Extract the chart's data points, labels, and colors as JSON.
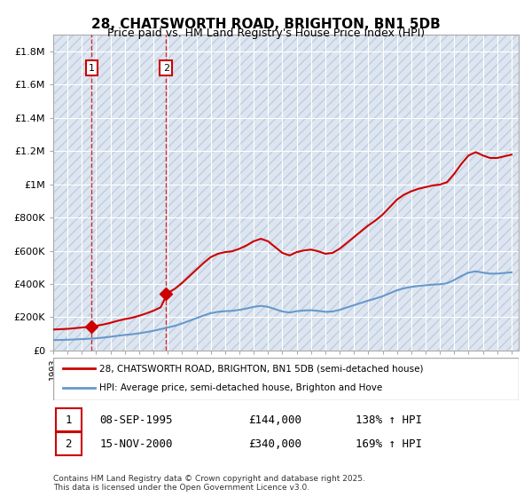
{
  "title": "28, CHATSWORTH ROAD, BRIGHTON, BN1 5DB",
  "subtitle": "Price paid vs. HM Land Registry's House Price Index (HPI)",
  "ylim": [
    0,
    1900000
  ],
  "yticks": [
    0,
    200000,
    400000,
    600000,
    800000,
    1000000,
    1200000,
    1400000,
    1600000,
    1800000
  ],
  "ytick_labels": [
    "£0",
    "£200K",
    "£400K",
    "£600K",
    "£800K",
    "£1M",
    "£1.2M",
    "£1.4M",
    "£1.6M",
    "£1.8M"
  ],
  "hpi_years": [
    1993,
    1993.5,
    1994,
    1994.5,
    1995,
    1995.5,
    1996,
    1996.5,
    1997,
    1997.5,
    1998,
    1998.5,
    1999,
    1999.5,
    2000,
    2000.5,
    2001,
    2001.5,
    2002,
    2002.5,
    2003,
    2003.5,
    2004,
    2004.5,
    2005,
    2005.5,
    2006,
    2006.5,
    2007,
    2007.5,
    2008,
    2008.5,
    2009,
    2009.5,
    2010,
    2010.5,
    2011,
    2011.5,
    2012,
    2012.5,
    2013,
    2013.5,
    2014,
    2014.5,
    2015,
    2015.5,
    2016,
    2016.5,
    2017,
    2017.5,
    2018,
    2018.5,
    2019,
    2019.5,
    2020,
    2020.5,
    2021,
    2021.5,
    2022,
    2022.5,
    2023,
    2023.5,
    2024,
    2024.5,
    2025
  ],
  "hpi_values": [
    62000,
    63000,
    64000,
    66000,
    68000,
    70000,
    73000,
    77000,
    82000,
    88000,
    93000,
    97000,
    103000,
    110000,
    118000,
    128000,
    138000,
    148000,
    162000,
    178000,
    194000,
    210000,
    224000,
    232000,
    236000,
    238000,
    244000,
    252000,
    262000,
    268000,
    262000,
    248000,
    234000,
    228000,
    236000,
    240000,
    242000,
    238000,
    232000,
    234000,
    244000,
    258000,
    272000,
    286000,
    300000,
    312000,
    326000,
    344000,
    362000,
    374000,
    382000,
    388000,
    392000,
    396000,
    398000,
    404000,
    424000,
    448000,
    468000,
    476000,
    468000,
    462000,
    462000,
    466000,
    470000
  ],
  "price_years": [
    1995.69,
    2000.88
  ],
  "price_values": [
    144000,
    340000
  ],
  "sale_labels": [
    "1",
    "2"
  ],
  "sale_dates": [
    "08-SEP-1995",
    "15-NOV-2000"
  ],
  "sale_prices": [
    "£144,000",
    "£340,000"
  ],
  "sale_hpi_pct": [
    "138% ↑ HPI",
    "169% ↑ HPI"
  ],
  "legend1": "28, CHATSWORTH ROAD, BRIGHTON, BN1 5DB (semi-detached house)",
  "legend2": "HPI: Average price, semi-detached house, Brighton and Hove",
  "footnote": "Contains HM Land Registry data © Crown copyright and database right 2025.\nThis data is licensed under the Open Government Licence v3.0.",
  "line_color_price": "#cc0000",
  "line_color_hpi": "#6699cc",
  "marker_color": "#cc0000",
  "bg_hatch_color": "#dddddd",
  "grid_color": "#ffffff",
  "plot_bg": "#e8f0f8",
  "hatch_bg": "#d0d8e8",
  "dashed_line_color": "#cc0000",
  "annotation_box_color": "#cc0000"
}
